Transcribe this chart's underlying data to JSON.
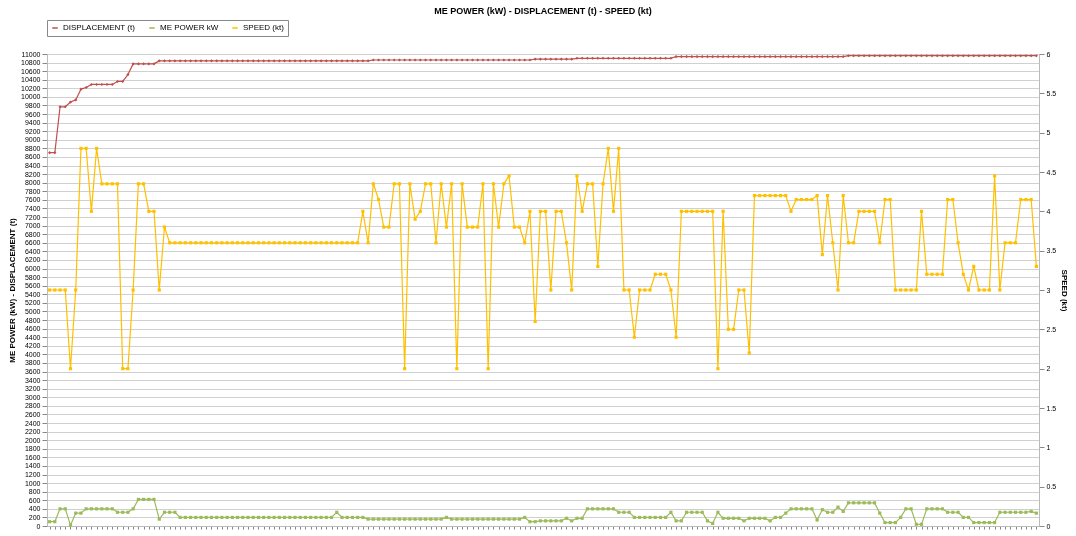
{
  "chart_data": {
    "type": "line",
    "title": "ME POWER (kW) - DISPLACEMENT (t) - SPEED (kt)",
    "ylabel": "ME POWER (kW) - DISPLACEMENT (t)",
    "y2label": "SPEED (kt)",
    "categories": [
      null,
      null,
      null,
      null,
      null,
      null,
      null,
      null,
      null,
      null,
      null,
      null,
      null,
      null,
      null,
      null,
      null,
      null,
      null,
      null,
      null,
      null,
      null,
      null,
      null,
      null,
      null,
      null,
      null,
      null,
      null,
      null,
      null,
      null,
      null,
      null,
      null,
      null,
      null,
      null,
      null,
      null,
      null,
      null,
      null,
      null,
      null,
      null,
      null,
      null,
      null,
      null,
      null,
      null,
      null,
      null,
      null,
      null,
      null,
      null,
      null,
      null,
      null,
      null,
      null,
      null,
      null,
      null,
      null,
      null,
      null,
      null,
      null,
      null,
      null,
      null,
      null,
      null,
      null,
      null,
      null,
      null,
      null,
      null,
      null,
      null,
      null,
      null,
      null,
      null,
      null,
      null,
      null,
      null,
      null,
      null,
      null,
      null,
      null,
      null,
      null,
      null,
      null,
      null,
      null,
      null,
      null,
      null,
      null,
      null,
      null,
      null,
      null,
      null,
      null,
      null,
      null,
      null,
      null,
      null,
      null,
      null,
      null,
      null,
      null,
      null,
      null,
      null,
      null,
      null,
      null,
      null,
      null,
      null,
      null,
      null,
      null,
      null,
      null,
      null,
      null,
      null,
      null,
      null,
      null,
      null,
      null,
      null,
      null,
      null,
      null,
      null,
      null,
      null,
      null,
      null,
      null,
      null,
      null,
      null,
      null,
      null,
      null,
      null,
      null,
      null,
      null,
      null,
      null,
      null,
      null,
      null,
      null,
      null,
      null,
      null,
      null,
      null,
      null,
      null,
      null,
      null,
      null,
      null,
      null,
      null,
      null,
      null,
      null,
      null
    ],
    "series": [
      {
        "name": "DISPLACEMENT (t)",
        "color": "#c0504d",
        "marker": "diamond",
        "values": [
          8700,
          8700,
          9770,
          9770,
          9880,
          9930,
          10180,
          10220,
          10290,
          10290,
          10290,
          10290,
          10290,
          10360,
          10360,
          10520,
          10770,
          10770,
          10770,
          10770,
          10770,
          10840,
          10840,
          10840,
          10840,
          10840,
          10840,
          10840,
          10840,
          10840,
          10840,
          10840,
          10840,
          10840,
          10840,
          10840,
          10840,
          10840,
          10840,
          10840,
          10840,
          10840,
          10840,
          10840,
          10840,
          10840,
          10840,
          10840,
          10840,
          10840,
          10840,
          10840,
          10840,
          10840,
          10840,
          10840,
          10840,
          10840,
          10840,
          10840,
          10840,
          10840,
          10860,
          10860,
          10860,
          10860,
          10860,
          10860,
          10860,
          10860,
          10860,
          10860,
          10860,
          10860,
          10860,
          10860,
          10860,
          10860,
          10860,
          10860,
          10860,
          10860,
          10860,
          10860,
          10860,
          10860,
          10860,
          10860,
          10860,
          10860,
          10860,
          10860,
          10860,
          10880,
          10880,
          10880,
          10880,
          10880,
          10880,
          10880,
          10880,
          10900,
          10900,
          10900,
          10900,
          10900,
          10900,
          10900,
          10900,
          10900,
          10900,
          10900,
          10900,
          10900,
          10900,
          10900,
          10900,
          10900,
          10900,
          10900,
          10940,
          10940,
          10940,
          10940,
          10940,
          10940,
          10940,
          10940,
          10940,
          10940,
          10940,
          10940,
          10940,
          10940,
          10940,
          10940,
          10940,
          10940,
          10940,
          10940,
          10940,
          10940,
          10940,
          10940,
          10940,
          10940,
          10940,
          10940,
          10940,
          10940,
          10940,
          10940,
          10940,
          10960,
          10960,
          10960,
          10960,
          10960,
          10960,
          10960,
          10960,
          10960,
          10960,
          10960,
          10960,
          10960,
          10960,
          10960,
          10960,
          10960,
          10960,
          10960,
          10960,
          10960,
          10960,
          10960,
          10960,
          10960,
          10960,
          10960,
          10960,
          10960,
          10960,
          10960,
          10960,
          10960,
          10960,
          10960,
          10960,
          10960
        ]
      },
      {
        "name": "ME POWER kW",
        "color": "#9bbb59",
        "marker": "square",
        "values": [
          100,
          100,
          400,
          400,
          20,
          300,
          300,
          400,
          400,
          400,
          400,
          400,
          400,
          320,
          320,
          320,
          400,
          620,
          620,
          620,
          620,
          160,
          320,
          320,
          320,
          200,
          200,
          200,
          200,
          200,
          200,
          200,
          200,
          200,
          200,
          200,
          200,
          200,
          200,
          200,
          200,
          200,
          200,
          200,
          200,
          200,
          200,
          200,
          200,
          200,
          200,
          200,
          200,
          200,
          200,
          320,
          200,
          200,
          200,
          200,
          200,
          160,
          160,
          160,
          160,
          160,
          160,
          160,
          160,
          160,
          160,
          160,
          160,
          160,
          160,
          160,
          200,
          160,
          160,
          160,
          160,
          160,
          160,
          160,
          160,
          160,
          160,
          160,
          160,
          160,
          160,
          200,
          100,
          100,
          120,
          120,
          120,
          120,
          120,
          180,
          120,
          180,
          180,
          400,
          400,
          400,
          400,
          400,
          400,
          320,
          320,
          320,
          200,
          200,
          200,
          200,
          200,
          200,
          200,
          320,
          120,
          120,
          320,
          320,
          320,
          320,
          120,
          60,
          320,
          180,
          180,
          180,
          180,
          120,
          180,
          180,
          180,
          180,
          120,
          200,
          200,
          300,
          400,
          400,
          400,
          400,
          400,
          140,
          380,
          320,
          320,
          440,
          340,
          540,
          540,
          540,
          540,
          540,
          540,
          300,
          80,
          80,
          80,
          200,
          400,
          400,
          40,
          40,
          400,
          400,
          400,
          400,
          320,
          320,
          320,
          200,
          200,
          80,
          80,
          80,
          80,
          80,
          320,
          320,
          320,
          320,
          320,
          320,
          340,
          300
        ]
      },
      {
        "name": "SPEED (kt)",
        "color": "#ffc000",
        "marker": "square",
        "axis": "y2",
        "values": [
          3.0,
          3.0,
          3.0,
          3.0,
          2.0,
          3.0,
          4.8,
          4.8,
          4.0,
          4.8,
          4.35,
          4.35,
          4.35,
          4.35,
          2.0,
          2.0,
          3.0,
          4.35,
          4.35,
          4.0,
          4.0,
          3.0,
          3.8,
          3.6,
          3.6,
          3.6,
          3.6,
          3.6,
          3.6,
          3.6,
          3.6,
          3.6,
          3.6,
          3.6,
          3.6,
          3.6,
          3.6,
          3.6,
          3.6,
          3.6,
          3.6,
          3.6,
          3.6,
          3.6,
          3.6,
          3.6,
          3.6,
          3.6,
          3.6,
          3.6,
          3.6,
          3.6,
          3.6,
          3.6,
          3.6,
          3.6,
          3.6,
          3.6,
          3.6,
          3.6,
          4.0,
          3.6,
          4.35,
          4.15,
          3.8,
          3.8,
          4.35,
          4.35,
          2.0,
          4.35,
          3.9,
          4.0,
          4.35,
          4.35,
          3.6,
          4.35,
          3.8,
          4.35,
          2.0,
          4.35,
          3.8,
          3.8,
          3.8,
          4.35,
          2.0,
          4.35,
          3.8,
          4.35,
          4.45,
          3.8,
          3.8,
          3.6,
          4.0,
          2.6,
          4.0,
          4.0,
          3.0,
          4.0,
          4.0,
          3.6,
          3.0,
          4.45,
          4.0,
          4.35,
          4.35,
          3.3,
          4.35,
          4.8,
          4.0,
          4.8,
          3.0,
          3.0,
          2.4,
          3.0,
          3.0,
          3.0,
          3.2,
          3.2,
          3.2,
          3.0,
          2.4,
          4.0,
          4.0,
          4.0,
          4.0,
          4.0,
          4.0,
          4.0,
          2.0,
          4.0,
          2.5,
          2.5,
          3.0,
          3.0,
          2.2,
          4.2,
          4.2,
          4.2,
          4.2,
          4.2,
          4.2,
          4.2,
          4.0,
          4.15,
          4.15,
          4.15,
          4.15,
          4.2,
          3.45,
          4.2,
          3.6,
          3.0,
          4.2,
          3.6,
          3.6,
          4.0,
          4.0,
          4.0,
          4.0,
          3.6,
          4.15,
          4.15,
          3.0,
          3.0,
          3.0,
          3.0,
          3.0,
          4.0,
          3.2,
          3.2,
          3.2,
          3.2,
          4.15,
          4.15,
          3.6,
          3.2,
          3.0,
          3.3,
          3.0,
          3.0,
          3.0,
          4.45,
          3.0,
          3.6,
          3.6,
          3.6,
          4.15,
          4.15,
          4.15,
          3.3
        ]
      }
    ],
    "ylim": [
      0,
      11000
    ],
    "yticks": [
      0,
      200,
      400,
      600,
      800,
      1000,
      1200,
      1400,
      1600,
      1800,
      2000,
      2200,
      2400,
      2600,
      2800,
      3000,
      3200,
      3400,
      3600,
      3800,
      4000,
      4200,
      4400,
      4600,
      4800,
      5000,
      5200,
      5400,
      5600,
      5800,
      6000,
      6200,
      6400,
      6600,
      6800,
      7000,
      7200,
      7400,
      7600,
      7800,
      8000,
      8200,
      8400,
      8600,
      8800,
      9000,
      9200,
      9400,
      9600,
      9800,
      10000,
      10200,
      10400,
      10600,
      10800,
      11000
    ],
    "y2lim": [
      0,
      6
    ],
    "y2ticks": [
      0,
      0.5,
      1,
      1.5,
      2,
      2.5,
      3,
      3.5,
      4,
      4.5,
      5,
      5.5,
      6
    ],
    "grid": "y",
    "legend": "top left",
    "line_style": "solid"
  }
}
